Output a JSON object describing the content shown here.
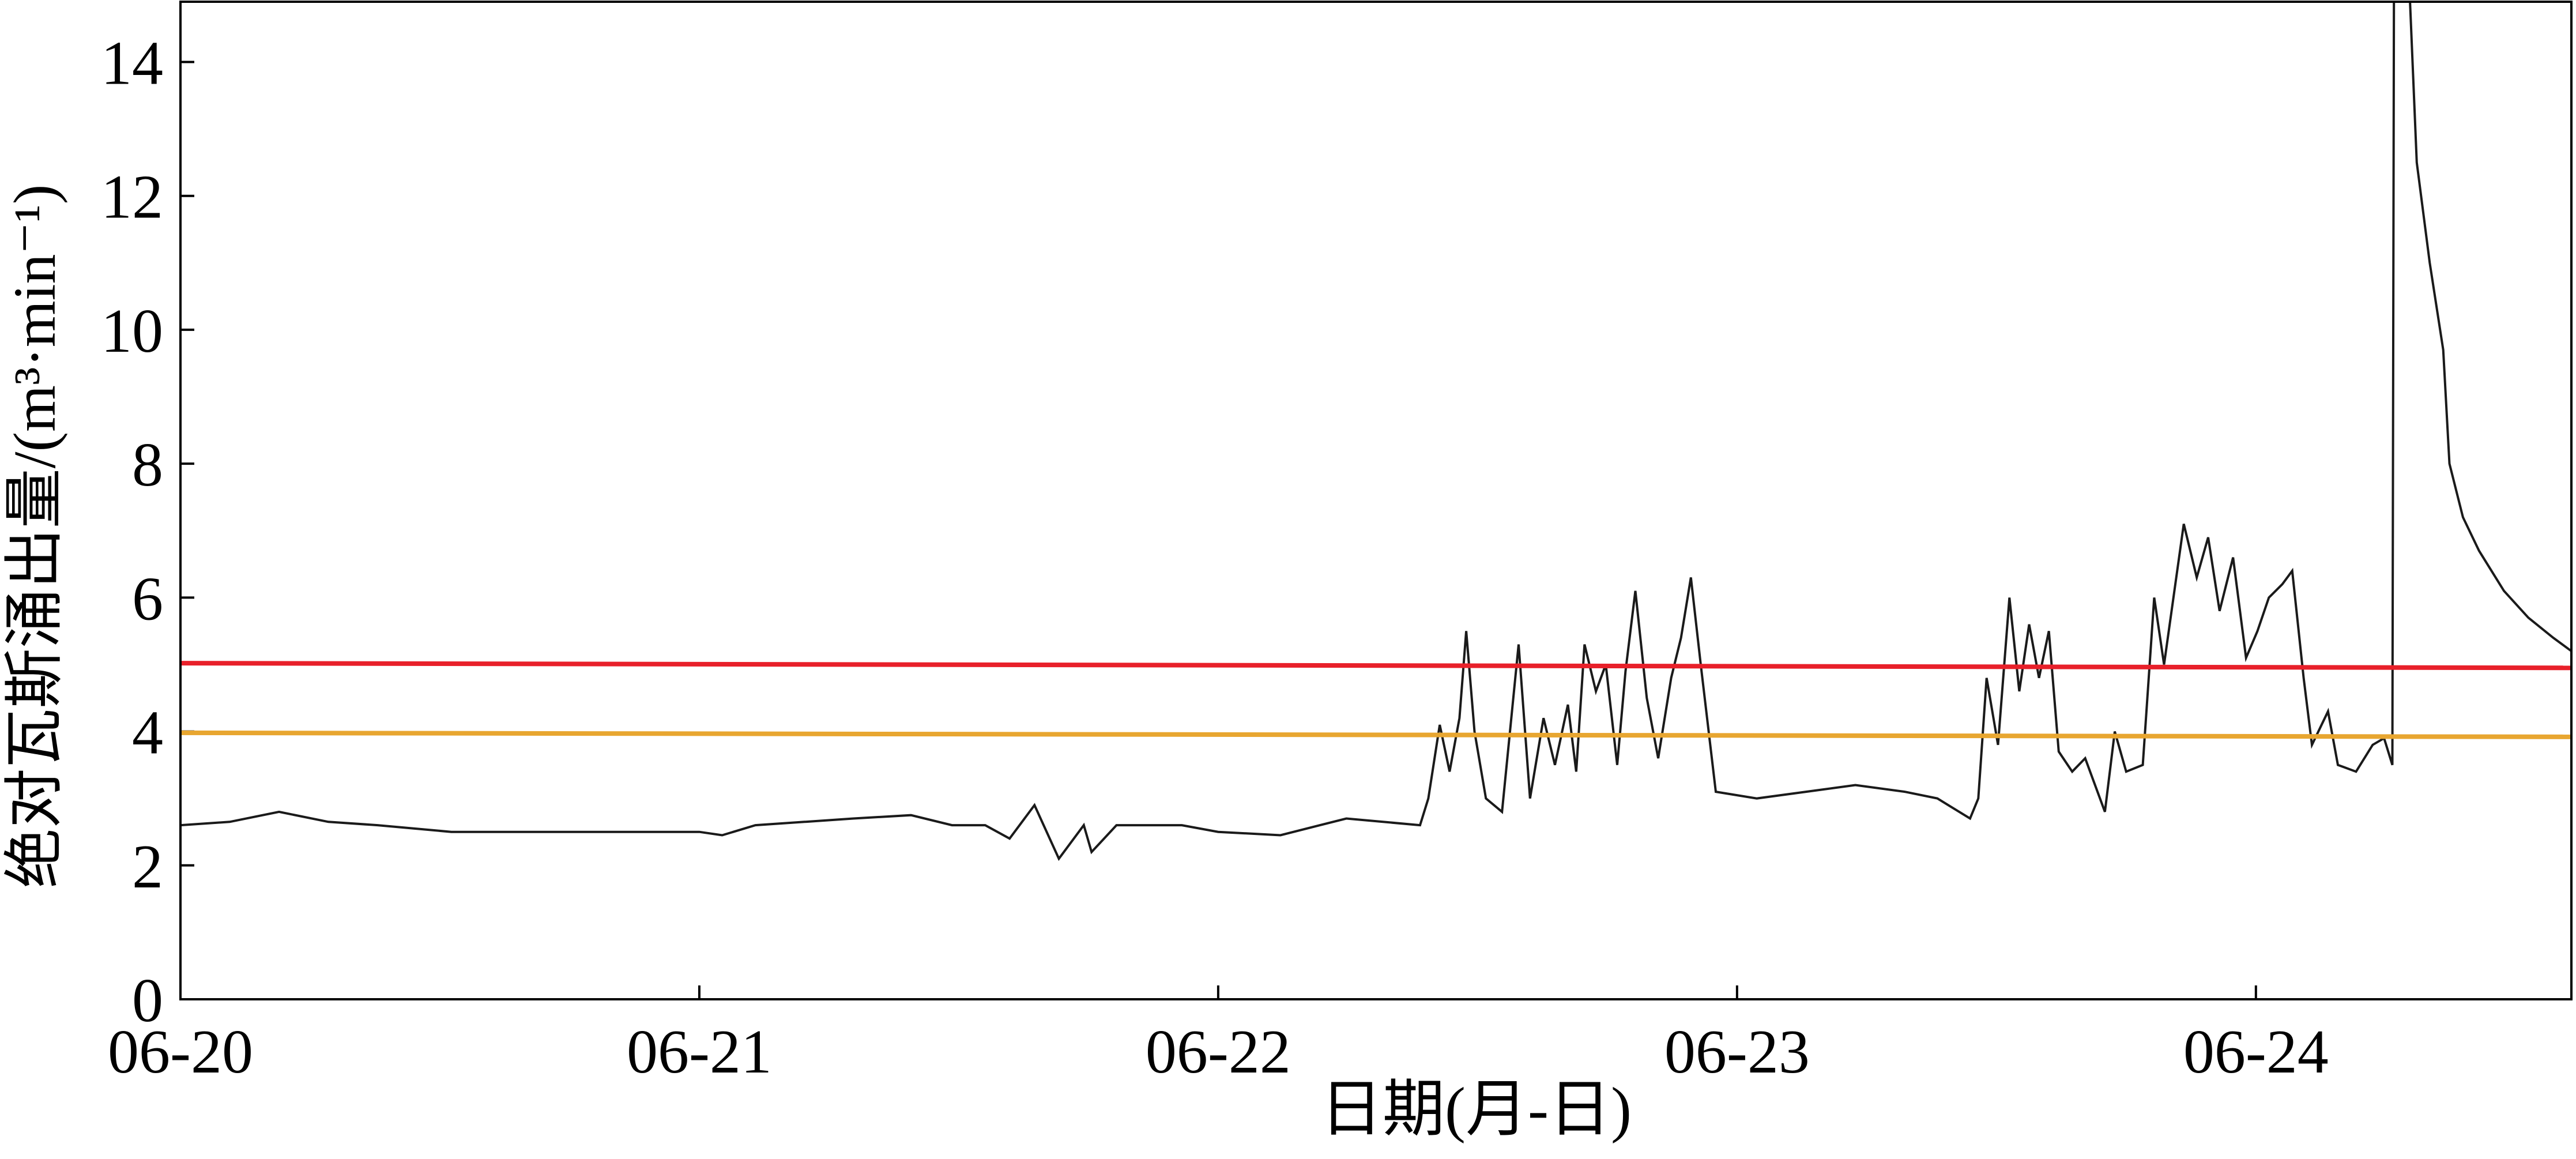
{
  "chart_data": {
    "type": "line",
    "xlabel": "日期(月-日)",
    "ylabel": "绝对瓦斯涌出量/(m³·min⁻¹)",
    "xlim": [
      0,
      4.608
    ],
    "xticks": [
      {
        "value": 0,
        "label": "06-20"
      },
      {
        "value": 1,
        "label": "06-21"
      },
      {
        "value": 2,
        "label": "06-22"
      },
      {
        "value": 3,
        "label": "06-23"
      },
      {
        "value": 4,
        "label": "06-24"
      }
    ],
    "ylim": [
      0,
      14.9
    ],
    "yticks": [
      0,
      2,
      4,
      6,
      8,
      10,
      12,
      14
    ],
    "series": [
      {
        "color": "#1a1a1a",
        "x": [
          0,
          0.095,
          0.19,
          0.285,
          0.38,
          0.522,
          0.601,
          1.0,
          1.044,
          1.108,
          1.203,
          1.297,
          1.408,
          1.487,
          1.551,
          1.598,
          1.646,
          1.693,
          1.741,
          1.756,
          1.804,
          1.93,
          2.0,
          2.12,
          2.247,
          2.389,
          2.405,
          2.427,
          2.446,
          2.465,
          2.478,
          2.494,
          2.516,
          2.547,
          2.579,
          2.601,
          2.627,
          2.649,
          2.674,
          2.69,
          2.706,
          2.728,
          2.747,
          2.769,
          2.785,
          2.804,
          2.826,
          2.848,
          2.873,
          2.892,
          2.911,
          2.93,
          2.959,
          3.038,
          3.133,
          3.228,
          3.323,
          3.386,
          3.449,
          3.465,
          3.481,
          3.503,
          3.525,
          3.544,
          3.563,
          3.582,
          3.601,
          3.62,
          3.646,
          3.671,
          3.709,
          3.728,
          3.75,
          3.782,
          3.804,
          3.823,
          3.861,
          3.886,
          3.908,
          3.93,
          3.956,
          3.981,
          4.003,
          4.025,
          4.051,
          4.07,
          4.092,
          4.108,
          4.139,
          4.158,
          4.193,
          4.225,
          4.247,
          4.263,
          4.266,
          4.297,
          4.31,
          4.335,
          4.361,
          4.373,
          4.399,
          4.43,
          4.478,
          4.525,
          4.573,
          4.608
        ],
        "values": [
          2.6,
          2.65,
          2.8,
          2.65,
          2.6,
          2.5,
          2.5,
          2.5,
          2.45,
          2.6,
          2.65,
          2.7,
          2.75,
          2.6,
          2.6,
          2.4,
          2.9,
          2.1,
          2.6,
          2.2,
          2.6,
          2.6,
          2.5,
          2.45,
          2.7,
          2.6,
          3.0,
          4.1,
          3.4,
          4.2,
          5.5,
          4.0,
          3.0,
          2.8,
          5.3,
          3.0,
          4.2,
          3.5,
          4.4,
          3.4,
          5.3,
          4.6,
          5.0,
          3.5,
          4.9,
          6.1,
          4.5,
          3.6,
          4.8,
          5.4,
          6.3,
          5.0,
          3.1,
          3.0,
          3.1,
          3.2,
          3.1,
          3.0,
          2.7,
          3.0,
          4.8,
          3.8,
          6.0,
          4.6,
          5.6,
          4.8,
          5.5,
          3.7,
          3.4,
          3.6,
          2.8,
          4.0,
          3.4,
          3.5,
          6.0,
          5.0,
          7.1,
          6.3,
          6.9,
          5.8,
          6.6,
          5.1,
          5.5,
          6.0,
          6.2,
          6.4,
          4.8,
          3.8,
          4.3,
          3.5,
          3.4,
          3.8,
          3.9,
          3.5,
          14.9,
          14.9,
          12.5,
          11.0,
          9.7,
          8.0,
          7.2,
          6.7,
          6.1,
          5.7,
          5.4,
          5.2
        ]
      },
      {
        "color": "#e8202a",
        "x": [
          0,
          4.608
        ],
        "values": [
          5.02,
          4.95
        ]
      },
      {
        "color": "#e8a630",
        "x": [
          0,
          4.608
        ],
        "values": [
          3.98,
          3.92
        ]
      }
    ]
  }
}
